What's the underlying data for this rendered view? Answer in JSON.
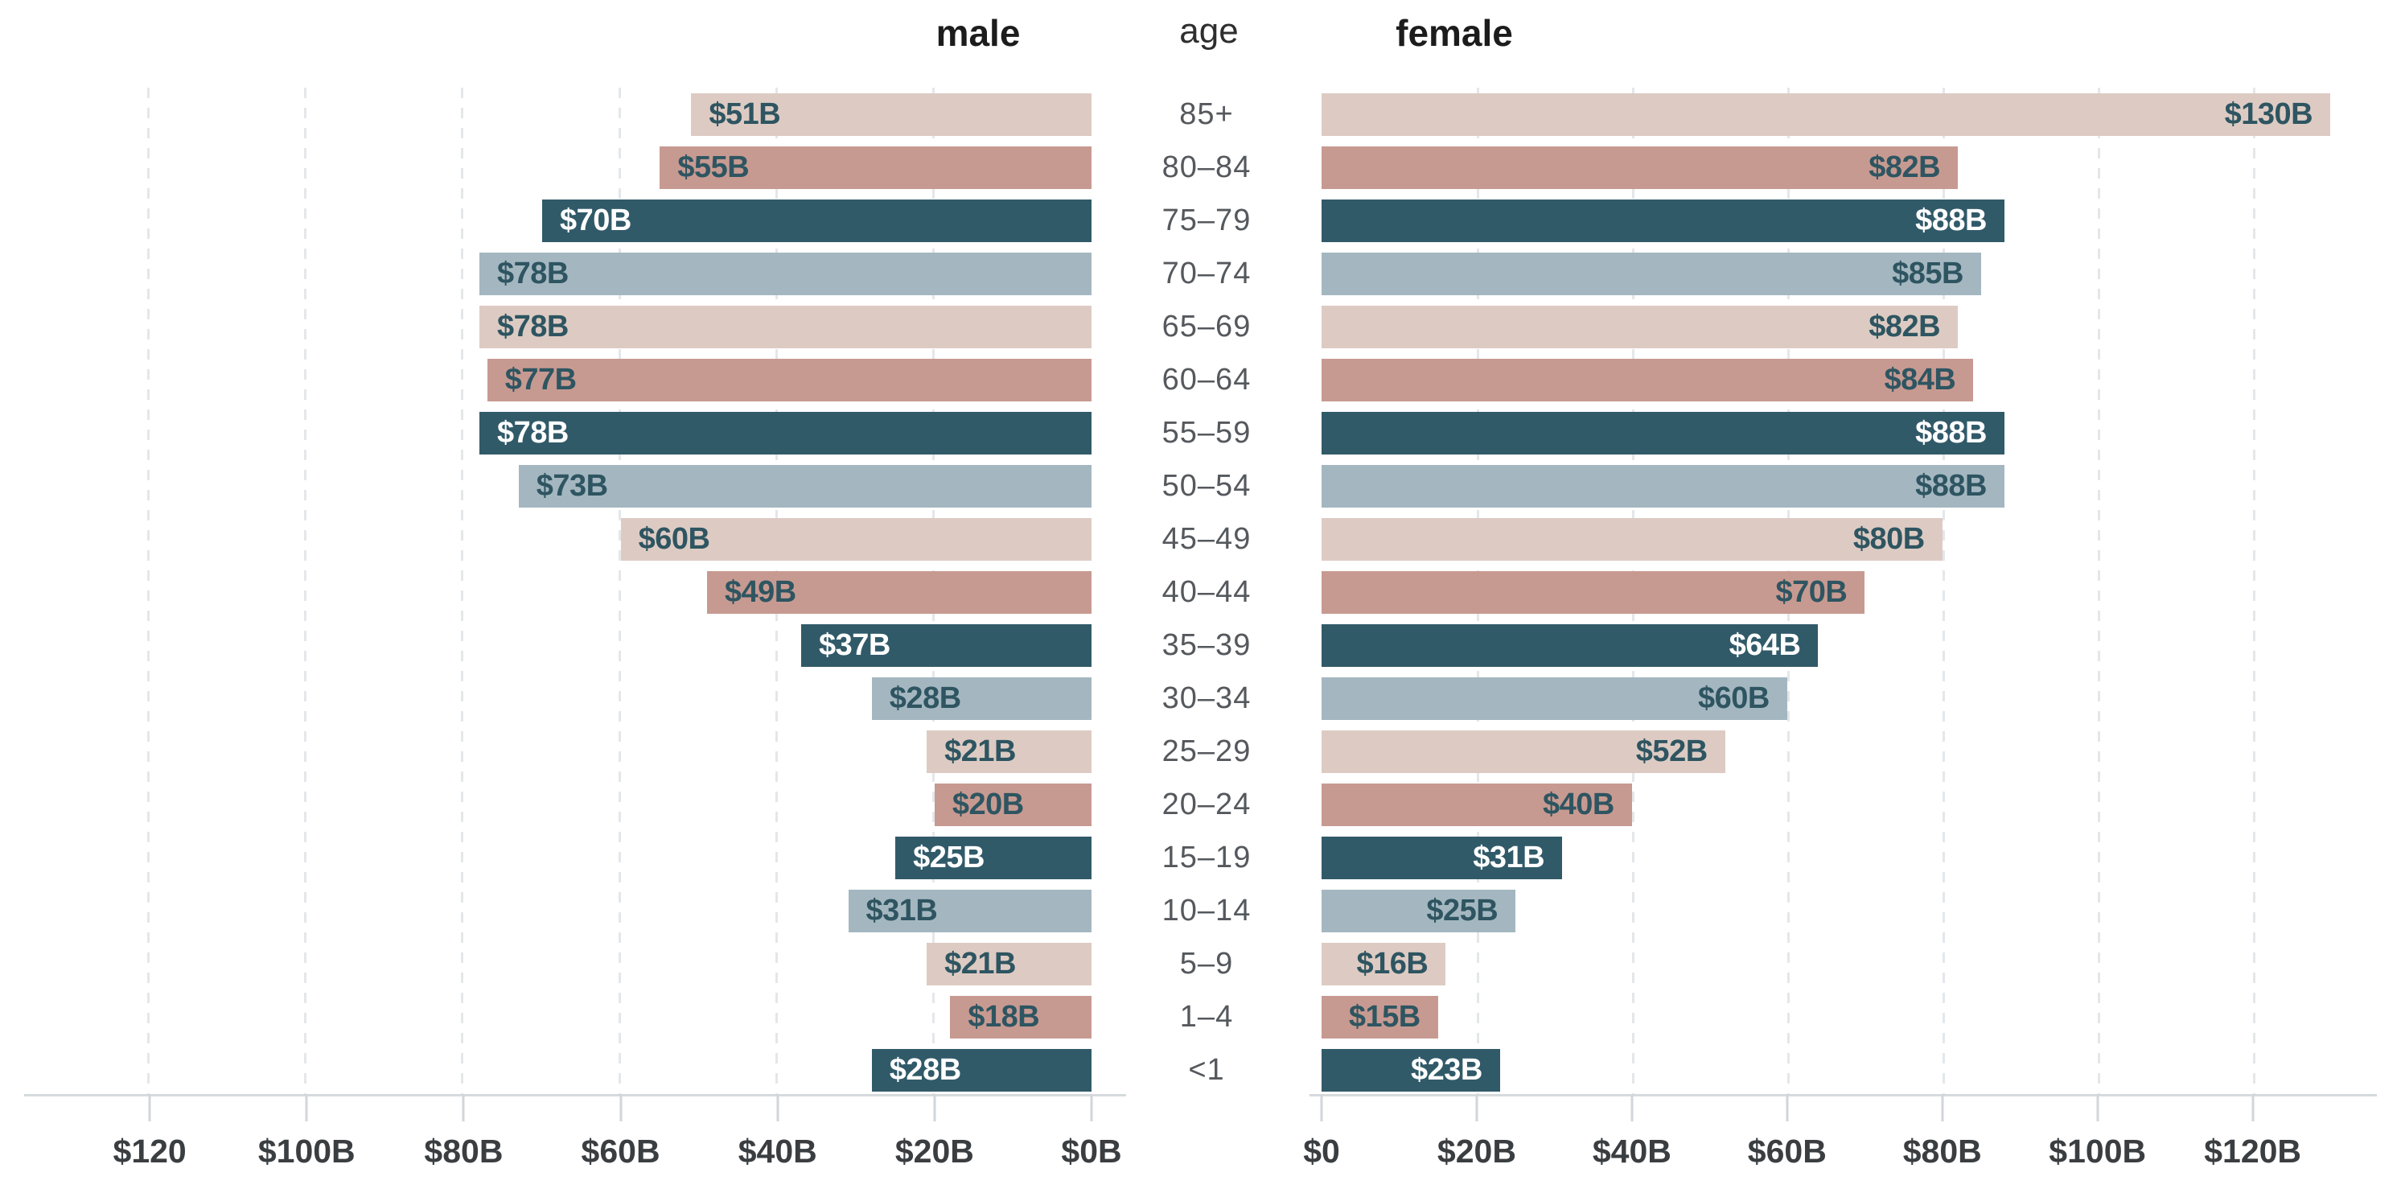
{
  "chart_data": {
    "type": "bar",
    "variant": "population-pyramid",
    "title_left": "male",
    "title_center": "age",
    "title_right": "female",
    "categories": [
      "85+",
      "80–84",
      "75–79",
      "70–74",
      "65–69",
      "60–64",
      "55–59",
      "50–54",
      "45–49",
      "40–44",
      "35–39",
      "30–34",
      "25–29",
      "20–24",
      "15–19",
      "10–14",
      "5–9",
      "1–4",
      "<1"
    ],
    "series": [
      {
        "name": "male",
        "values": [
          51,
          55,
          70,
          78,
          78,
          77,
          78,
          73,
          60,
          49,
          37,
          28,
          21,
          20,
          25,
          31,
          21,
          18,
          28
        ],
        "labels": [
          "$51B",
          "$55B",
          "$70B",
          "$78B",
          "$78B",
          "$77B",
          "$78B",
          "$73B",
          "$60B",
          "$49B",
          "$37B",
          "$28B",
          "$21B",
          "$20B",
          "$25B",
          "$31B",
          "$21B",
          "$18B",
          "$28B"
        ]
      },
      {
        "name": "female",
        "values": [
          130,
          82,
          88,
          85,
          82,
          84,
          88,
          88,
          80,
          70,
          64,
          60,
          52,
          40,
          31,
          25,
          16,
          15,
          23
        ],
        "labels": [
          "$130B",
          "$82B",
          "$88B",
          "$85B",
          "$82B",
          "$84B",
          "$88B",
          "$88B",
          "$80B",
          "$70B",
          "$64B",
          "$60B",
          "$52B",
          "$40B",
          "$31B",
          "$25B",
          "$16B",
          "$15B",
          "$23B"
        ]
      }
    ],
    "axis": {
      "max": 136,
      "gridline_values": [
        20,
        40,
        60,
        80,
        100,
        120
      ],
      "left_ticks": [
        {
          "value": 120,
          "label": "$120"
        },
        {
          "value": 100,
          "label": "$100B"
        },
        {
          "value": 80,
          "label": "$80B"
        },
        {
          "value": 60,
          "label": "$60B"
        },
        {
          "value": 40,
          "label": "$40B"
        },
        {
          "value": 20,
          "label": "$20B"
        },
        {
          "value": 0,
          "label": "$0B"
        }
      ],
      "right_ticks": [
        {
          "value": 0,
          "label": "$0"
        },
        {
          "value": 20,
          "label": "$20B"
        },
        {
          "value": 40,
          "label": "$40B"
        },
        {
          "value": 60,
          "label": "$60B"
        },
        {
          "value": 80,
          "label": "$80B"
        },
        {
          "value": 100,
          "label": "$100B"
        },
        {
          "value": 120,
          "label": "$120B"
        }
      ],
      "grid": true,
      "gridline_style": "dashed"
    },
    "palette": {
      "cycle": [
        "#ddcbc3",
        "#c79a91",
        "#315a69",
        "#a4b7c0"
      ],
      "dark_bar_cycle_index": 2,
      "label_dark": "#2e5561",
      "label_light": "#ffffff"
    }
  }
}
